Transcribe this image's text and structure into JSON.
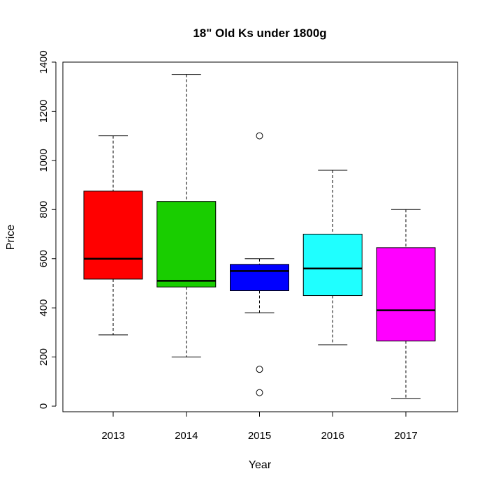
{
  "chart_data": {
    "type": "box",
    "title": "18\" Old Ks under 1800g",
    "xlabel": "Year",
    "ylabel": "Price",
    "ylim": [
      0,
      1400
    ],
    "yticks": [
      "0",
      "200",
      "400",
      "600",
      "800",
      "1000",
      "1200",
      "1400"
    ],
    "grid": false,
    "categories": [
      "2013",
      "2014",
      "2015",
      "2016",
      "2017"
    ],
    "boxes": [
      {
        "label": "2013",
        "whisker_low": 290,
        "q1": 517,
        "median": 600,
        "q3": 875,
        "whisker_high": 1100,
        "outliers": [],
        "color": "#ff0000"
      },
      {
        "label": "2014",
        "whisker_low": 200,
        "q1": 485,
        "median": 510,
        "q3": 833,
        "whisker_high": 1350,
        "outliers": [],
        "color": "#19cd00"
      },
      {
        "label": "2015",
        "whisker_low": 380,
        "q1": 470,
        "median": 550,
        "q3": 577,
        "whisker_high": 600,
        "outliers": [
          1100,
          150,
          55
        ],
        "color": "#0000ff"
      },
      {
        "label": "2016",
        "whisker_low": 250,
        "q1": 450,
        "median": 560,
        "q3": 700,
        "whisker_high": 960,
        "outliers": [],
        "color": "#1fffff"
      },
      {
        "label": "2017",
        "whisker_low": 30,
        "q1": 265,
        "median": 390,
        "q3": 645,
        "whisker_high": 800,
        "outliers": [],
        "color": "#ff00ff"
      }
    ]
  }
}
